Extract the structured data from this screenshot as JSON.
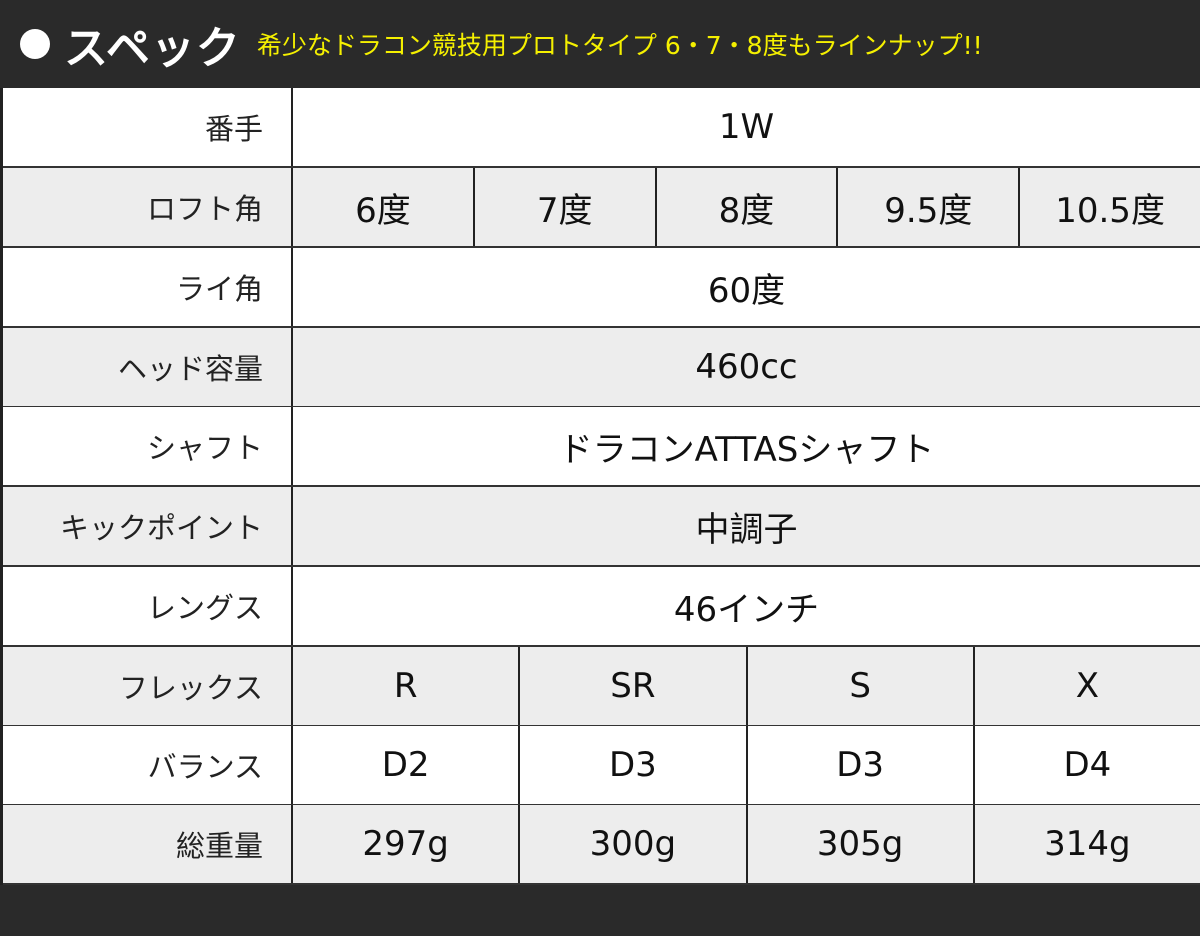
{
  "header": {
    "title": "スペック",
    "subtitle": "希少なドラコン競技用プロトタイプ 6・7・8度もラインナップ!!"
  },
  "rows": [
    {
      "label": "番手",
      "values": [
        "1W"
      ]
    },
    {
      "label": "ロフト角",
      "values": [
        "6度",
        "7度",
        "8度",
        "9.5度",
        "10.5度"
      ]
    },
    {
      "label": "ライ角",
      "values": [
        "60度"
      ]
    },
    {
      "label": "ヘッド容量",
      "values": [
        "460cc"
      ]
    },
    {
      "label": "シャフト",
      "values": [
        "ドラコンATTASシャフト"
      ]
    },
    {
      "label": "キックポイント",
      "values": [
        "中調子"
      ]
    },
    {
      "label": "レングス",
      "values": [
        "46インチ"
      ]
    },
    {
      "label": "フレックス",
      "values": [
        "R",
        "SR",
        "S",
        "X"
      ]
    },
    {
      "label": "バランス",
      "values": [
        "D2",
        "D3",
        "D3",
        "D4"
      ]
    },
    {
      "label": "総重量",
      "values": [
        "297g",
        "300g",
        "305g",
        "314g"
      ]
    }
  ]
}
